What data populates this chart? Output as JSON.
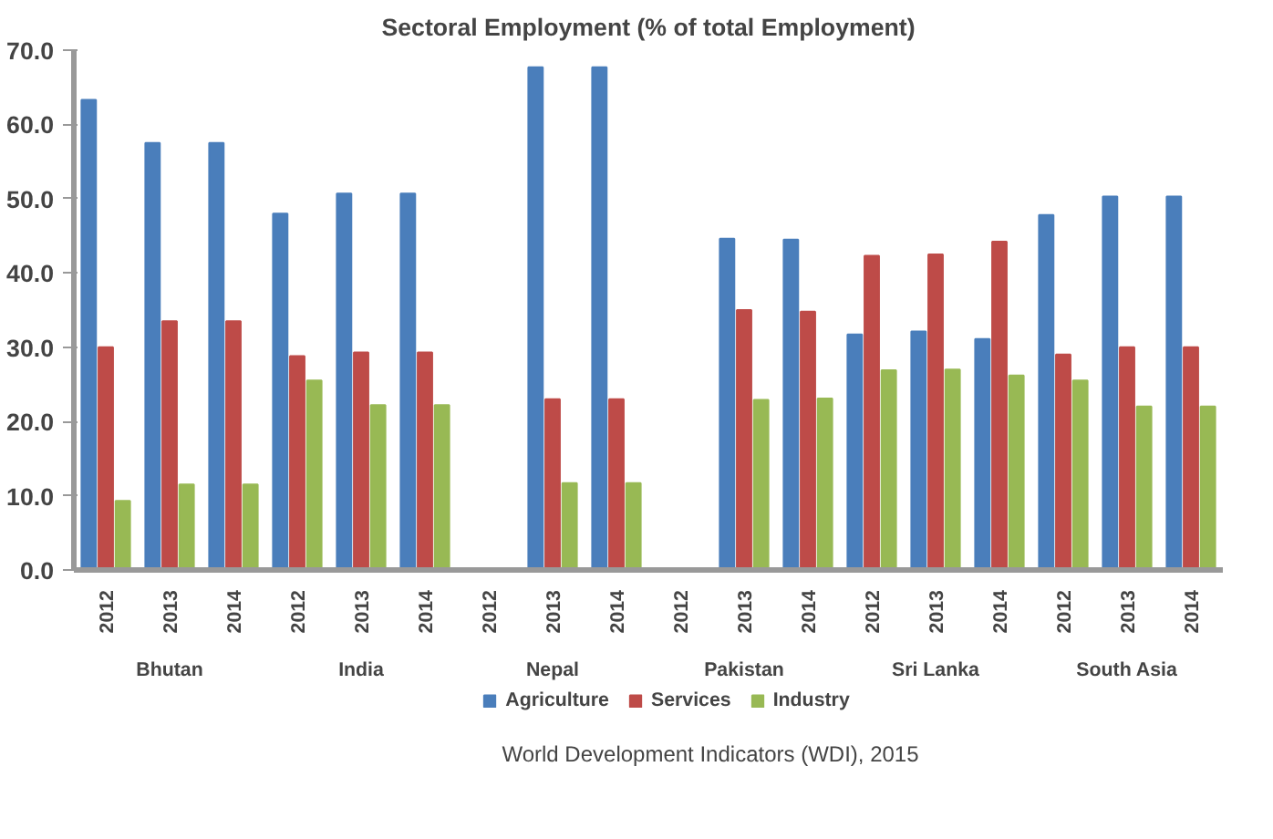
{
  "chart_data": {
    "type": "bar",
    "title": "Sectoral Employment (% of total Employment)",
    "categories": [
      "2012",
      "2013",
      "2014",
      "2012",
      "2013",
      "2014",
      "2012",
      "2013",
      "2014",
      "2012",
      "2013",
      "2014",
      "2012",
      "2013",
      "2014",
      "2012",
      "2013",
      "2014"
    ],
    "series": [
      {
        "name": "Agriculture",
        "color": "#4a7ebb",
        "values": [
          63.3,
          57.5,
          57.5,
          48.0,
          50.7,
          50.7,
          null,
          67.7,
          67.7,
          null,
          44.6,
          44.5,
          31.7,
          32.1,
          31.1,
          47.8,
          50.3,
          50.3
        ]
      },
      {
        "name": "Services",
        "color": "#be4b48",
        "values": [
          30.0,
          33.5,
          33.5,
          28.8,
          29.3,
          29.3,
          null,
          23.0,
          23.0,
          null,
          35.0,
          34.8,
          42.3,
          42.5,
          44.2,
          29.0,
          30.0,
          30.0
        ]
      },
      {
        "name": "Industry",
        "color": "#98b954",
        "values": [
          9.3,
          11.5,
          11.5,
          25.5,
          22.2,
          22.2,
          null,
          11.7,
          11.7,
          null,
          22.9,
          23.1,
          26.9,
          27.0,
          26.2,
          25.5,
          22.0,
          22.0
        ]
      }
    ],
    "annotations": [
      "Bhutan",
      "India",
      "Nepal",
      "Pakistan",
      "Sri Lanka",
      "South Asia",
      "World Development Indicators (WDI), 2015"
    ],
    "ylim": [
      0,
      70
    ],
    "yticks": [
      {
        "value": 0,
        "label": "0.0"
      },
      {
        "value": 10,
        "label": "10.0"
      },
      {
        "value": 20,
        "label": "20.0"
      },
      {
        "value": 30,
        "label": "30.0"
      },
      {
        "value": 40,
        "label": "40.0"
      },
      {
        "value": 50,
        "label": "50.0"
      },
      {
        "value": 60,
        "label": "60.0"
      },
      {
        "value": 70,
        "label": "70.0"
      }
    ],
    "grid": false,
    "legend": "bottom"
  }
}
